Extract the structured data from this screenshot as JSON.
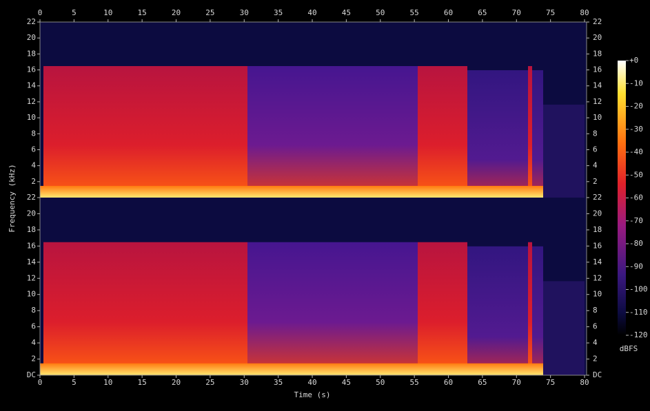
{
  "chart_data": {
    "type": "spectrogram",
    "x_label": "Time (s)",
    "y_label": "Frequency (kHz)",
    "xlim": [
      0,
      80.3
    ],
    "xticks": [
      0,
      5,
      10,
      15,
      20,
      25,
      30,
      35,
      40,
      45,
      50,
      55,
      60,
      65,
      70,
      75,
      80
    ],
    "ylim": [
      0,
      22
    ],
    "channels": [
      {
        "yticks": [
          2,
          4,
          6,
          8,
          10,
          12,
          14,
          16,
          18,
          20,
          22
        ]
      },
      {
        "yticks": [
          {
            "value": 0,
            "label": "DC"
          },
          2,
          4,
          6,
          8,
          10,
          12,
          14,
          16,
          18,
          20,
          22
        ]
      }
    ],
    "colorbar": {
      "label": "dBFS",
      "lim": [
        -120,
        0
      ],
      "ticks": [
        {
          "value": 0,
          "label": "+0"
        },
        -10,
        -20,
        -30,
        -40,
        -50,
        -60,
        -70,
        -80,
        -90,
        -100,
        -110,
        -120
      ]
    }
  }
}
